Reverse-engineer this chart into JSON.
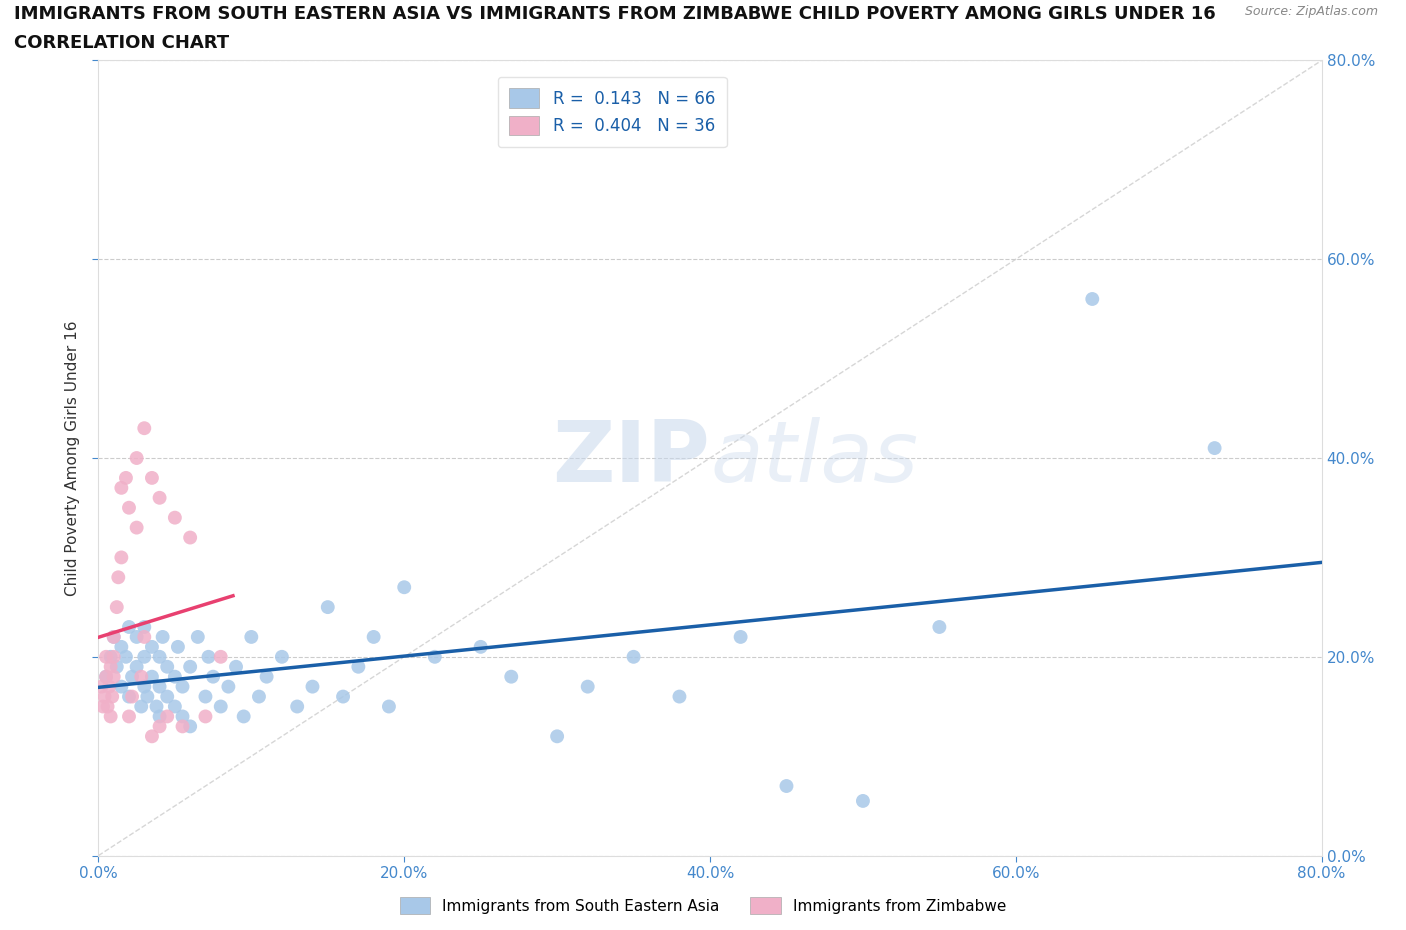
{
  "title_line1": "IMMIGRANTS FROM SOUTH EASTERN ASIA VS IMMIGRANTS FROM ZIMBABWE CHILD POVERTY AMONG GIRLS UNDER 16",
  "title_line2": "CORRELATION CHART",
  "source_text": "Source: ZipAtlas.com",
  "ylabel": "Child Poverty Among Girls Under 16",
  "xlim": [
    0.0,
    0.8
  ],
  "ylim": [
    0.0,
    0.8
  ],
  "xtick_vals": [
    0.0,
    0.2,
    0.4,
    0.6,
    0.8
  ],
  "ytick_vals": [
    0.0,
    0.2,
    0.4,
    0.6,
    0.8
  ],
  "background_color": "#ffffff",
  "grid_color": "#cccccc",
  "watermark_zip": "ZIP",
  "watermark_atlas": "atlas",
  "diagonal_color": "#cccccc",
  "blue_series": {
    "label": "Immigrants from South Eastern Asia",
    "R": 0.143,
    "N": 66,
    "scatter_color": "#a8c8e8",
    "trend_color": "#1a5fa8",
    "x": [
      0.005,
      0.008,
      0.01,
      0.012,
      0.015,
      0.015,
      0.018,
      0.02,
      0.02,
      0.022,
      0.025,
      0.025,
      0.028,
      0.03,
      0.03,
      0.03,
      0.032,
      0.035,
      0.035,
      0.038,
      0.04,
      0.04,
      0.04,
      0.042,
      0.045,
      0.045,
      0.05,
      0.05,
      0.052,
      0.055,
      0.055,
      0.06,
      0.06,
      0.065,
      0.07,
      0.072,
      0.075,
      0.08,
      0.085,
      0.09,
      0.095,
      0.1,
      0.105,
      0.11,
      0.12,
      0.13,
      0.14,
      0.15,
      0.16,
      0.17,
      0.18,
      0.19,
      0.2,
      0.22,
      0.25,
      0.27,
      0.3,
      0.32,
      0.35,
      0.38,
      0.42,
      0.45,
      0.5,
      0.55,
      0.65,
      0.73
    ],
    "y": [
      0.18,
      0.2,
      0.22,
      0.19,
      0.17,
      0.21,
      0.2,
      0.16,
      0.23,
      0.18,
      0.19,
      0.22,
      0.15,
      0.17,
      0.2,
      0.23,
      0.16,
      0.18,
      0.21,
      0.15,
      0.14,
      0.17,
      0.2,
      0.22,
      0.16,
      0.19,
      0.15,
      0.18,
      0.21,
      0.14,
      0.17,
      0.13,
      0.19,
      0.22,
      0.16,
      0.2,
      0.18,
      0.15,
      0.17,
      0.19,
      0.14,
      0.22,
      0.16,
      0.18,
      0.2,
      0.15,
      0.17,
      0.25,
      0.16,
      0.19,
      0.22,
      0.15,
      0.27,
      0.2,
      0.21,
      0.18,
      0.12,
      0.17,
      0.2,
      0.16,
      0.22,
      0.07,
      0.055,
      0.23,
      0.56,
      0.41
    ]
  },
  "pink_series": {
    "label": "Immigrants from Zimbabwe",
    "R": 0.404,
    "N": 36,
    "scatter_color": "#f0b0c8",
    "trend_color": "#e84070",
    "x": [
      0.002,
      0.003,
      0.004,
      0.005,
      0.005,
      0.006,
      0.007,
      0.008,
      0.008,
      0.009,
      0.01,
      0.01,
      0.01,
      0.012,
      0.013,
      0.015,
      0.015,
      0.018,
      0.02,
      0.02,
      0.022,
      0.025,
      0.025,
      0.028,
      0.03,
      0.03,
      0.035,
      0.035,
      0.04,
      0.04,
      0.045,
      0.05,
      0.055,
      0.06,
      0.07,
      0.08
    ],
    "y": [
      0.17,
      0.15,
      0.16,
      0.18,
      0.2,
      0.15,
      0.17,
      0.19,
      0.14,
      0.16,
      0.18,
      0.2,
      0.22,
      0.25,
      0.28,
      0.3,
      0.37,
      0.38,
      0.14,
      0.35,
      0.16,
      0.33,
      0.4,
      0.18,
      0.22,
      0.43,
      0.12,
      0.38,
      0.13,
      0.36,
      0.14,
      0.34,
      0.13,
      0.32,
      0.14,
      0.2
    ]
  },
  "legend_R_color": "#1a5fa8",
  "axis_tick_color": "#4488cc",
  "title_color": "#111111",
  "title_fontsize": 13,
  "subtitle_fontsize": 13,
  "source_color": "#888888",
  "source_fontsize": 9,
  "ylabel_color": "#333333",
  "ylabel_fontsize": 11
}
